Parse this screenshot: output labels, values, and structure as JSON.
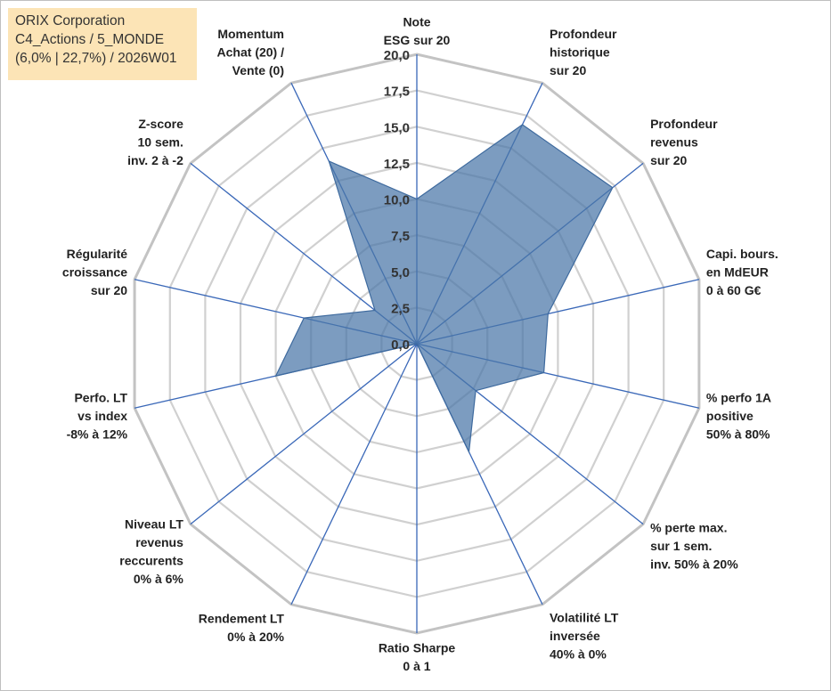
{
  "info": {
    "line1": "ORIX Corporation",
    "line2": "C4_Actions / 5_MONDE",
    "line3": "(6,0% | 22,7%) / 2026W01"
  },
  "chart_data": {
    "type": "radar",
    "title": "",
    "rmax": 20,
    "ticks": [
      "0,0",
      "2,5",
      "5,0",
      "7,5",
      "10,0",
      "12,5",
      "15,0",
      "17,5",
      "20,0"
    ],
    "axes": [
      {
        "name": "Note ESG sur 20",
        "lines": [
          "Note",
          "ESG sur 20"
        ]
      },
      {
        "name": "Profondeur historique sur 20",
        "lines": [
          "Profondeur",
          "historique",
          "sur 20"
        ]
      },
      {
        "name": "Profondeur revenus sur 20",
        "lines": [
          "Profondeur",
          "revenus",
          "sur 20"
        ]
      },
      {
        "name": "Capi. bours. en MdEUR 0 à 60 G€",
        "lines": [
          "Capi. bours.",
          "en MdEUR",
          "0 à 60 G€"
        ]
      },
      {
        "name": "% perfo 1A positive 50% à 80%",
        "lines": [
          "% perfo 1A",
          "positive",
          "50% à 80%"
        ]
      },
      {
        "name": "% perte max. sur 1 sem. inv. 50% à 20%",
        "lines": [
          "% perte max.",
          "sur 1 sem.",
          "inv. 50% à 20%"
        ]
      },
      {
        "name": "Volatilité LT inversée 40% à 0%",
        "lines": [
          "Volatilité LT",
          "inversée",
          "40% à 0%"
        ]
      },
      {
        "name": "Ratio Sharpe 0 à 1",
        "lines": [
          "Ratio Sharpe",
          "0 à 1"
        ]
      },
      {
        "name": "Rendement LT 0% à 20%",
        "lines": [
          "Rendement LT",
          "0% à 20%"
        ]
      },
      {
        "name": "Niveau LT revenus reccurents 0% à 6%",
        "lines": [
          "Niveau LT",
          "revenus",
          "reccurents",
          "0% à 6%"
        ]
      },
      {
        "name": "Perfo. LT vs index -8% à 12%",
        "lines": [
          "Perfo. LT",
          "vs index",
          "-8% à 12%"
        ]
      },
      {
        "name": "Régularité croissance sur 20",
        "lines": [
          "Régularité",
          "croissance",
          "sur 20"
        ]
      },
      {
        "name": "Z-score 10 sem. inv. 2 à -2",
        "lines": [
          "Z-score",
          "10 sem.",
          "inv. 2 à -2"
        ]
      },
      {
        "name": "Momentum Achat (20) / Vente (0)",
        "lines": [
          "Momentum",
          "Achat (20) /",
          "Vente (0)"
        ]
      }
    ],
    "series": [
      {
        "name": "ORIX Corporation",
        "color": "#4a76a8",
        "values": [
          10.0,
          16.8,
          17.3,
          9.3,
          9.0,
          5.2,
          8.3,
          0.0,
          0.0,
          0.0,
          10.0,
          8.0,
          3.7,
          14.0
        ]
      }
    ]
  }
}
